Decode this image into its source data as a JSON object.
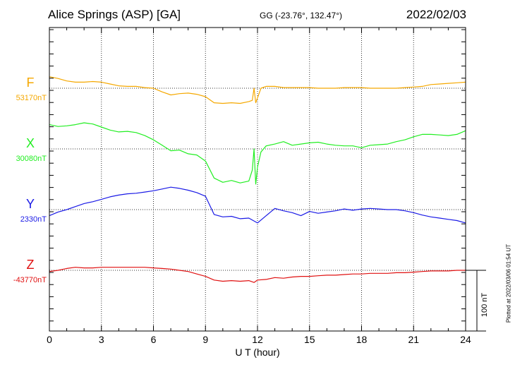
{
  "header": {
    "station": "Alice Springs (ASP)  [GA]",
    "coords": "GG (-23.76°, 132.47°)",
    "date": "2022/02/03"
  },
  "footer": {
    "xlabel": "U T (hour)",
    "scale": "100 nT",
    "plotted": "Plotted at 2022/03/06 01:54 UT"
  },
  "chart_data": {
    "type": "line",
    "title": "Alice Springs (ASP)  [GA]",
    "xlabel": "U T (hour)",
    "ylabel": "",
    "xlim": [
      0,
      24
    ],
    "xticks": [
      0,
      3,
      6,
      9,
      12,
      15,
      18,
      21,
      24
    ],
    "grid": true,
    "scale_bar_nT": 100,
    "series": [
      {
        "name": "F",
        "baseline_label": "53170nT",
        "baseline_nT": 53170,
        "color": "#f5a800",
        "x": [
          0,
          0.5,
          1,
          1.5,
          2,
          2.5,
          3,
          3.5,
          4,
          4.5,
          5,
          5.5,
          6,
          6.5,
          7,
          7.5,
          8,
          8.5,
          9,
          9.5,
          10,
          10.5,
          11,
          11.5,
          11.7,
          11.8,
          11.9,
          12,
          12.2,
          12.5,
          13,
          13.5,
          14,
          14.5,
          15,
          15.5,
          16,
          16.5,
          17,
          17.5,
          18,
          18.5,
          19,
          19.5,
          20,
          20.5,
          21,
          21.5,
          22,
          22.5,
          23,
          23.5,
          24
        ],
        "values": [
          19,
          16,
          12,
          10,
          10,
          11,
          10,
          7,
          4,
          3,
          3,
          1,
          0,
          -6,
          -11,
          -9,
          -8,
          -10,
          -14,
          -24,
          -25,
          -24,
          -25,
          -22,
          -20,
          0,
          -24,
          -16,
          0,
          3,
          3,
          1,
          1,
          1,
          1,
          0,
          0,
          0,
          1,
          1,
          1,
          0,
          0,
          0,
          0,
          1,
          2,
          3,
          6,
          7,
          8,
          9,
          10
        ]
      },
      {
        "name": "X",
        "baseline_label": "30080nT",
        "baseline_nT": 30080,
        "color": "#22ee22",
        "x": [
          0,
          0.5,
          1,
          1.5,
          2,
          2.5,
          3,
          3.5,
          4,
          4.5,
          5,
          5.5,
          6,
          6.5,
          7,
          7.5,
          8,
          8.5,
          9,
          9.5,
          10,
          10.5,
          11,
          11.5,
          11.7,
          11.8,
          11.9,
          12,
          12.2,
          12.5,
          13,
          13.5,
          14,
          14.5,
          15,
          15.5,
          16,
          16.5,
          17,
          17.5,
          18,
          18.5,
          19,
          19.5,
          20,
          20.5,
          21,
          21.5,
          22,
          22.5,
          23,
          23.5,
          24
        ],
        "values": [
          40,
          37,
          38,
          40,
          43,
          41,
          36,
          31,
          28,
          29,
          27,
          22,
          15,
          6,
          -3,
          -2,
          -8,
          -10,
          -20,
          -48,
          -55,
          -52,
          -56,
          -53,
          -35,
          0,
          -58,
          -30,
          -5,
          5,
          8,
          12,
          6,
          8,
          10,
          11,
          8,
          6,
          5,
          5,
          2,
          6,
          7,
          8,
          12,
          15,
          20,
          24,
          24,
          23,
          22,
          24,
          30
        ]
      },
      {
        "name": "Y",
        "baseline_label": "2330nT",
        "baseline_nT": 2330,
        "color": "#1a1ae6",
        "x": [
          0,
          0.5,
          1,
          1.5,
          2,
          2.5,
          3,
          3.5,
          4,
          4.5,
          5,
          5.5,
          6,
          6.5,
          7,
          7.5,
          8,
          8.5,
          9,
          9.5,
          10,
          10.5,
          11,
          11.5,
          12,
          12.5,
          13,
          13.5,
          14,
          14.5,
          15,
          15.5,
          16,
          16.5,
          17,
          17.5,
          18,
          18.5,
          19,
          19.5,
          20,
          20.5,
          21,
          21.5,
          22,
          22.5,
          23,
          23.5,
          24
        ],
        "values": [
          -10,
          -4,
          0,
          5,
          10,
          13,
          17,
          21,
          24,
          26,
          27,
          29,
          31,
          34,
          37,
          35,
          32,
          28,
          22,
          -8,
          -12,
          -11,
          -15,
          -14,
          -22,
          -10,
          2,
          -2,
          -5,
          -10,
          -3,
          -6,
          -4,
          -2,
          1,
          -1,
          1,
          2,
          1,
          0,
          0,
          -2,
          -5,
          -9,
          -12,
          -14,
          -16,
          -18,
          -22
        ]
      },
      {
        "name": "Z",
        "baseline_label": "-43770nT",
        "baseline_nT": -43770,
        "color": "#e01010",
        "x": [
          0,
          0.5,
          1,
          1.5,
          2,
          2.5,
          3,
          3.5,
          4,
          4.5,
          5,
          5.5,
          6,
          6.5,
          7,
          7.5,
          8,
          8.5,
          9,
          9.5,
          10,
          10.5,
          11,
          11.5,
          11.8,
          12,
          12.5,
          13,
          13.5,
          14,
          14.5,
          15,
          15.5,
          16,
          16.5,
          17,
          17.5,
          18,
          18.5,
          19,
          19.5,
          20,
          20.5,
          21,
          21.5,
          22,
          22.5,
          23,
          23.5,
          24
        ],
        "values": [
          -2,
          0,
          3,
          5,
          4,
          4,
          5,
          5,
          5,
          5,
          5,
          5,
          4,
          3,
          2,
          0,
          -2,
          -6,
          -10,
          -16,
          -18,
          -17,
          -18,
          -17,
          -20,
          -16,
          -15,
          -12,
          -13,
          -11,
          -10,
          -10,
          -9,
          -8,
          -8,
          -7,
          -6,
          -6,
          -5,
          -5,
          -5,
          -4,
          -4,
          -3,
          -2,
          -1,
          -1,
          -1,
          0,
          0
        ]
      }
    ]
  }
}
